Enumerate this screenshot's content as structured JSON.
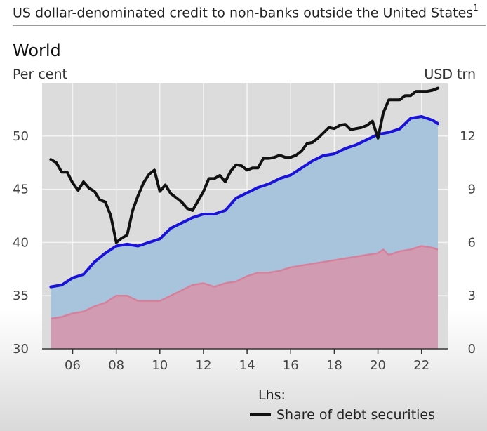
{
  "header": {
    "title": "US dollar-denominated credit to non-banks outside the United States",
    "footnote": "1"
  },
  "panel": {
    "title": "World",
    "left_unit": "Per cent",
    "right_unit": "USD trn"
  },
  "legend": {
    "heading": "Lhs:",
    "items": [
      {
        "label": "Share of debt securities",
        "color": "#111111"
      }
    ]
  },
  "colors": {
    "plot_background": "#dcdcdc",
    "grid": "#f4f4f4",
    "total_area_fill": "#a7c4dc",
    "total_line": "#1a12d8",
    "lower_area_fill": "#d19cb1",
    "lower_line": "#d6819c",
    "share_line": "#111111"
  },
  "chart_data": {
    "type": "line",
    "title": "World",
    "ylabel_left": "Per cent",
    "ylabel_right": "USD trn",
    "xlim": [
      2004.6,
      2023.2
    ],
    "ylim_left": [
      30,
      55
    ],
    "ylim_right": [
      0,
      15
    ],
    "grid": true,
    "x_ticks": [
      2006,
      2008,
      2010,
      2012,
      2014,
      2016,
      2018,
      2020,
      2022
    ],
    "x_tick_labels": [
      "06",
      "08",
      "10",
      "12",
      "14",
      "16",
      "18",
      "20",
      "22"
    ],
    "y_ticks_left": [
      30,
      35,
      40,
      45,
      50
    ],
    "y_ticks_right": [
      0,
      3,
      6,
      9,
      12
    ],
    "legend_position": "bottom",
    "series": [
      {
        "name": "Share of debt securities",
        "axis": "left",
        "style": "line",
        "x": [
          2005.0,
          2005.25,
          2005.5,
          2005.75,
          2006.0,
          2006.25,
          2006.5,
          2006.75,
          2007.0,
          2007.25,
          2007.5,
          2007.75,
          2008.0,
          2008.25,
          2008.5,
          2008.75,
          2009.0,
          2009.25,
          2009.5,
          2009.75,
          2010.0,
          2010.25,
          2010.5,
          2010.75,
          2011.0,
          2011.25,
          2011.5,
          2011.75,
          2012.0,
          2012.25,
          2012.5,
          2012.75,
          2013.0,
          2013.25,
          2013.5,
          2013.75,
          2014.0,
          2014.25,
          2014.5,
          2014.75,
          2015.0,
          2015.25,
          2015.5,
          2015.75,
          2016.0,
          2016.25,
          2016.5,
          2016.75,
          2017.0,
          2017.25,
          2017.5,
          2017.75,
          2018.0,
          2018.25,
          2018.5,
          2018.75,
          2019.0,
          2019.25,
          2019.5,
          2019.75,
          2020.0,
          2020.25,
          2020.5,
          2020.75,
          2021.0,
          2021.25,
          2021.5,
          2021.75,
          2022.0,
          2022.25,
          2022.5,
          2022.75
        ],
        "values": [
          47.8,
          47.5,
          46.6,
          46.6,
          45.6,
          44.9,
          45.7,
          45.1,
          44.8,
          44.0,
          43.8,
          42.5,
          40.0,
          40.4,
          40.7,
          43.0,
          44.4,
          45.6,
          46.4,
          46.8,
          44.8,
          45.4,
          44.6,
          44.2,
          43.8,
          43.2,
          43.0,
          43.9,
          44.8,
          46.0,
          46.0,
          46.3,
          45.7,
          46.7,
          47.3,
          47.2,
          46.8,
          47.0,
          47.0,
          47.9,
          47.9,
          48.0,
          48.2,
          48.0,
          48.0,
          48.2,
          48.6,
          49.3,
          49.4,
          49.8,
          50.3,
          50.8,
          50.7,
          51.0,
          51.1,
          50.6,
          50.7,
          50.8,
          51.0,
          51.4,
          49.8,
          52.2,
          53.4,
          53.4,
          53.4,
          53.8,
          53.8,
          54.2,
          54.2,
          54.2,
          54.3,
          54.5
        ]
      },
      {
        "name": "",
        "axis": "right",
        "style": "area-with-line",
        "x": [
          2005.0,
          2005.5,
          2006.0,
          2006.5,
          2007.0,
          2007.5,
          2008.0,
          2008.5,
          2009.0,
          2009.5,
          2010.0,
          2010.5,
          2011.0,
          2011.5,
          2012.0,
          2012.5,
          2013.0,
          2013.5,
          2014.0,
          2014.5,
          2015.0,
          2015.5,
          2016.0,
          2016.5,
          2017.0,
          2017.5,
          2018.0,
          2018.5,
          2019.0,
          2019.5,
          2020.0,
          2020.5,
          2021.0,
          2021.5,
          2022.0,
          2022.5,
          2022.75
        ],
        "values": [
          3.5,
          3.6,
          4.0,
          4.2,
          4.9,
          5.4,
          5.8,
          5.9,
          5.8,
          6.0,
          6.2,
          6.8,
          7.1,
          7.4,
          7.6,
          7.6,
          7.8,
          8.5,
          8.8,
          9.1,
          9.3,
          9.6,
          9.8,
          10.2,
          10.6,
          10.9,
          11.0,
          11.3,
          11.5,
          11.8,
          12.1,
          12.2,
          12.4,
          13.0,
          13.1,
          12.9,
          12.7
        ]
      },
      {
        "name": "",
        "axis": "right",
        "style": "area-with-line",
        "x": [
          2005.0,
          2005.5,
          2006.0,
          2006.5,
          2007.0,
          2007.5,
          2008.0,
          2008.5,
          2009.0,
          2009.5,
          2010.0,
          2010.5,
          2011.0,
          2011.5,
          2012.0,
          2012.5,
          2013.0,
          2013.5,
          2014.0,
          2014.5,
          2015.0,
          2015.5,
          2016.0,
          2016.5,
          2017.0,
          2017.5,
          2018.0,
          2018.5,
          2019.0,
          2019.5,
          2020.0,
          2020.25,
          2020.5,
          2021.0,
          2021.5,
          2022.0,
          2022.5,
          2022.75
        ],
        "values": [
          1.7,
          1.8,
          2.0,
          2.1,
          2.4,
          2.6,
          3.0,
          3.0,
          2.7,
          2.7,
          2.7,
          3.0,
          3.3,
          3.6,
          3.7,
          3.5,
          3.7,
          3.8,
          4.1,
          4.3,
          4.3,
          4.4,
          4.6,
          4.7,
          4.8,
          4.9,
          5.0,
          5.1,
          5.2,
          5.3,
          5.4,
          5.6,
          5.3,
          5.5,
          5.6,
          5.8,
          5.7,
          5.6
        ]
      }
    ]
  }
}
